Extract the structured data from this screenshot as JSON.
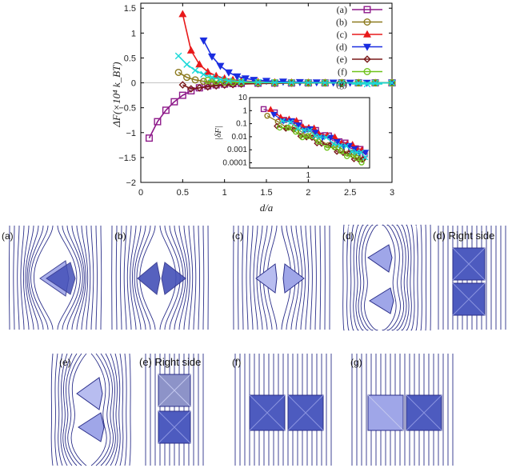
{
  "chart_data": {
    "type": "line",
    "title": "",
    "xlabel": "d/a",
    "ylabel": "ΔF(×10⁴ k_BT)",
    "xlim": [
      0,
      3
    ],
    "ylim": [
      -2,
      1.6
    ],
    "xticks": [
      "0",
      "0.5",
      "1",
      "1.5",
      "2",
      "2.5",
      "3"
    ],
    "yticks": [
      "1.5",
      "1",
      "0.5",
      "0",
      "−0.5",
      "−1",
      "−1.5",
      "−2"
    ],
    "series": [
      {
        "name": "(a)",
        "color": "#8e1a8a",
        "marker": "square",
        "x": [
          0.1,
          0.2,
          0.3,
          0.4,
          0.5,
          0.6,
          0.7,
          0.8,
          0.9,
          1.0,
          1.1,
          1.2,
          1.4,
          1.6,
          1.8,
          2.0,
          2.2,
          2.4,
          2.6,
          2.8,
          3.0
        ],
        "y": [
          -1.11,
          -0.78,
          -0.55,
          -0.38,
          -0.25,
          -0.16,
          -0.1,
          -0.06,
          -0.04,
          -0.025,
          -0.015,
          -0.01,
          -0.006,
          -0.004,
          -0.003,
          -0.002,
          -0.001,
          0,
          0,
          0,
          0
        ]
      },
      {
        "name": "(b)",
        "color": "#8c7a1e",
        "marker": "circle",
        "x": [
          0.45,
          0.55,
          0.65,
          0.75,
          0.85,
          0.95,
          1.05,
          1.2,
          1.4,
          1.6,
          1.8,
          2.0,
          2.2,
          2.4,
          2.6,
          2.8,
          3.0
        ],
        "y": [
          0.21,
          0.11,
          0.06,
          0.03,
          0.015,
          0.008,
          0.004,
          0.002,
          0.001,
          0.001,
          0,
          0,
          0,
          0,
          0,
          0,
          0
        ]
      },
      {
        "name": "(c)",
        "color": "#e8191a",
        "marker": "triangle-up",
        "x": [
          0.5,
          0.6,
          0.7,
          0.8,
          0.9,
          1.0,
          1.1,
          1.2,
          1.4,
          1.6,
          1.8,
          2.0,
          2.2,
          2.4,
          2.6,
          2.8,
          3.0
        ],
        "y": [
          1.38,
          0.65,
          0.37,
          0.22,
          0.14,
          0.09,
          0.06,
          0.04,
          0.02,
          0.012,
          0.008,
          0.005,
          0.003,
          0.002,
          0.001,
          0,
          0
        ]
      },
      {
        "name": "(d)",
        "color": "#1a2de0",
        "marker": "triangle-down",
        "x": [
          0.75,
          0.85,
          0.95,
          1.05,
          1.15,
          1.25,
          1.35,
          1.5,
          1.7,
          1.9,
          2.1,
          2.3,
          2.5,
          2.7,
          3.0
        ],
        "y": [
          0.85,
          0.53,
          0.34,
          0.21,
          0.13,
          0.09,
          0.06,
          0.04,
          0.025,
          0.015,
          0.01,
          0.006,
          0.004,
          0.002,
          0.001
        ]
      },
      {
        "name": "(e)",
        "color": "#7a1a1a",
        "marker": "diamond",
        "x": [
          0.5,
          0.6,
          0.7,
          0.8,
          0.9,
          1.0,
          1.1,
          1.2,
          1.4,
          1.6,
          1.8,
          2.0,
          2.2,
          2.4,
          2.6,
          2.8,
          3.0
        ],
        "y": [
          -0.04,
          -0.12,
          -0.1,
          -0.08,
          -0.06,
          -0.045,
          -0.035,
          -0.025,
          -0.015,
          -0.01,
          -0.006,
          -0.004,
          -0.002,
          -0.001,
          0,
          0,
          0
        ]
      },
      {
        "name": "(f)",
        "color": "#6fc21a",
        "marker": "circle",
        "x": [
          0.8,
          0.9,
          1.0,
          1.1,
          1.2,
          1.4,
          1.6,
          1.8,
          2.0,
          2.2,
          2.4,
          2.6,
          2.8,
          3.0
        ],
        "y": [
          0.05,
          0.03,
          0.02,
          0.012,
          0.008,
          0.004,
          0.002,
          0.001,
          0,
          0,
          0,
          0,
          0,
          0
        ]
      },
      {
        "name": "(g)",
        "color": "#1ad8d8",
        "marker": "x",
        "x": [
          0.45,
          0.55,
          0.65,
          0.75,
          0.85,
          0.95,
          1.05,
          1.2,
          1.4,
          1.6,
          1.8,
          2.0,
          2.2,
          2.4,
          2.6,
          2.8,
          3.0
        ],
        "y": [
          0.54,
          0.37,
          0.25,
          0.17,
          0.11,
          0.07,
          0.045,
          0.025,
          0.012,
          0.006,
          0.003,
          0.002,
          0.001,
          0,
          0,
          0,
          0
        ]
      }
    ],
    "inset": {
      "type": "scatter",
      "xscale": "log",
      "yscale": "log",
      "ylabel": "|δF|",
      "xtick_label": "1",
      "ytick_labels": [
        "10",
        "1",
        "0.1",
        "0.01",
        "0.001",
        "0.0001"
      ],
      "xlim": [
        0.35,
        3.0
      ],
      "ylim": [
        4e-05,
        10
      ]
    }
  },
  "panels": {
    "a": "(a)",
    "b": "(b)",
    "c": "(c)",
    "d": "(d)",
    "d_right": "(d) Right side",
    "e": "(e)",
    "e_right": "(e) Right side",
    "f": "(f)",
    "g": "(g)"
  },
  "colors": {
    "field_line": "#2b2f8a",
    "particle_light": "#9fa6e8",
    "particle_dark": "#4450b8"
  }
}
